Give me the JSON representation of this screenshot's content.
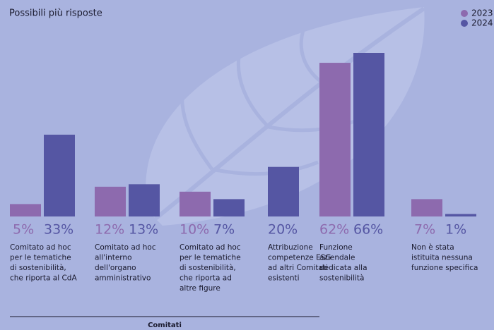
{
  "chart_data": {
    "type": "bar",
    "subtitle": "Possibili più risposte",
    "categories": [
      [
        "Comitato ad hoc",
        "per le tematiche",
        "di sostenibilità,",
        "che riporta al CdA"
      ],
      [
        "Comitato ad hoc",
        "all'interno",
        "dell'organo",
        "amministrativo"
      ],
      [
        "Comitato ad hoc",
        "per le tematiche",
        "di sostenibilità,",
        "che riporta ad",
        "altre figure"
      ],
      [
        "Attribuzione",
        "competenze ESG",
        "ad altri Comitati",
        "esistenti"
      ],
      [
        "Funzione",
        "aziendale",
        "dedicata alla",
        "sostenibilità"
      ],
      [
        "Non è stata",
        "istituita nessuna",
        "funzione specifica"
      ]
    ],
    "series": [
      {
        "name": "2023",
        "color": "#8d6aae",
        "values": [
          5,
          12,
          10,
          null,
          62,
          7
        ],
        "value_labels": [
          "5%",
          "12%",
          "10%",
          null,
          "62%",
          "7%"
        ]
      },
      {
        "name": "2024",
        "color": "#5556a3",
        "values": [
          33,
          13,
          7,
          20,
          66,
          1
        ],
        "value_labels": [
          "33%",
          "13%",
          "7%",
          "20%",
          "66%",
          "1%"
        ]
      }
    ],
    "group_label": "Comitati",
    "legend": "top-right"
  }
}
